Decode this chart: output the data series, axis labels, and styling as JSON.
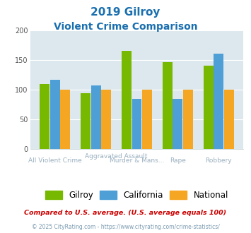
{
  "title_line1": "2019 Gilroy",
  "title_line2": "Violent Crime Comparison",
  "title_color": "#1a6faf",
  "groups": [
    {
      "name": "All Violent Crime",
      "gilroy": 110,
      "california": 117,
      "national": 100
    },
    {
      "name": "Aggravated Assault",
      "gilroy": 94,
      "california": 107,
      "national": 100
    },
    {
      "name": "Murder & Mans...",
      "gilroy": 165,
      "california": 85,
      "national": 100
    },
    {
      "name": "Rape",
      "gilroy": 146,
      "california": 85,
      "national": 100
    },
    {
      "name": "Robbery",
      "gilroy": 140,
      "california": 161,
      "national": 100
    }
  ],
  "gilroy_color": "#77b800",
  "california_color": "#4d9fd6",
  "national_color": "#f5a623",
  "ylim": [
    0,
    200
  ],
  "yticks": [
    0,
    50,
    100,
    150,
    200
  ],
  "plot_bg_color": "#dde8ee",
  "fig_bg_color": "#ffffff",
  "legend_labels": [
    "Gilroy",
    "California",
    "National"
  ],
  "footnote1": "Compared to U.S. average. (U.S. average equals 100)",
  "footnote2": "© 2025 CityRating.com - https://www.cityrating.com/crime-statistics/",
  "footnote1_color": "#cc0000",
  "footnote2_color": "#7a9ab0",
  "xlabel_color": "#9ab0c0"
}
